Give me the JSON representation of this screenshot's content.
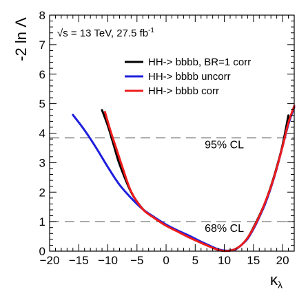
{
  "chart_data": {
    "type": "line",
    "title": "",
    "xlabel": "κ_λ",
    "ylabel": "-2 ln Λ",
    "xlim": [
      -20,
      22
    ],
    "ylim": [
      0,
      8
    ],
    "xticks": [
      -20,
      -15,
      -10,
      -5,
      0,
      5,
      10,
      15,
      20
    ],
    "yticks": [
      0,
      1,
      2,
      3,
      4,
      5,
      6,
      7,
      8
    ],
    "grid": false,
    "legend_position": "top-right",
    "annotation": {
      "sqrt_s": "√s",
      "rest": " = 13 TeV, 27.5 fb",
      "superscript": "-1"
    },
    "reference_lines": [
      {
        "y": 3.84,
        "label": "95% CL",
        "label_x": 10.0
      },
      {
        "y": 1.0,
        "label": "68% CL",
        "label_x": 10.0
      }
    ],
    "series": [
      {
        "name": "HH-> bbbb, BR=1 corr",
        "color": "#000000",
        "x": [
          -11,
          -10,
          -9,
          -8,
          -6,
          -4,
          -2,
          0,
          2,
          4,
          6,
          8,
          9,
          10,
          11,
          12,
          13,
          14,
          15,
          16,
          17,
          18,
          19,
          20,
          21
        ],
        "y": [
          4.78,
          4.25,
          3.6,
          2.95,
          2.0,
          1.43,
          1.12,
          0.88,
          0.68,
          0.48,
          0.3,
          0.12,
          0.04,
          0.01,
          0.02,
          0.08,
          0.22,
          0.45,
          0.8,
          1.2,
          1.65,
          2.2,
          2.85,
          3.6,
          4.6
        ]
      },
      {
        "name": "HH-> bbbb uncorr",
        "color": "#1f1fdd",
        "x": [
          -16,
          -14,
          -12,
          -10,
          -8,
          -6,
          -4,
          -2,
          0,
          2,
          4,
          6,
          8,
          9,
          10,
          11,
          12,
          13,
          14,
          15,
          16,
          17,
          18,
          19,
          20,
          21,
          22
        ],
        "y": [
          4.62,
          4.1,
          3.5,
          2.85,
          2.25,
          1.8,
          1.42,
          1.15,
          0.9,
          0.7,
          0.52,
          0.32,
          0.14,
          0.06,
          0.02,
          0.02,
          0.07,
          0.22,
          0.42,
          0.75,
          1.15,
          1.6,
          2.15,
          2.8,
          3.55,
          4.3,
          4.88
        ]
      },
      {
        "name": "HH-> bbbb corr",
        "color": "#ee1c1c",
        "x": [
          -10.5,
          -9.5,
          -8.5,
          -7.5,
          -6,
          -4,
          -2,
          0,
          2,
          4,
          6,
          8,
          9,
          10,
          11,
          12,
          13,
          14,
          15,
          16,
          17,
          18,
          19,
          20,
          21,
          22
        ],
        "y": [
          4.72,
          4.05,
          3.45,
          2.85,
          2.02,
          1.42,
          1.12,
          0.86,
          0.66,
          0.46,
          0.28,
          0.11,
          0.04,
          0.01,
          0.02,
          0.08,
          0.22,
          0.45,
          0.78,
          1.18,
          1.65,
          2.18,
          2.82,
          3.55,
          4.35,
          4.92
        ]
      }
    ]
  }
}
